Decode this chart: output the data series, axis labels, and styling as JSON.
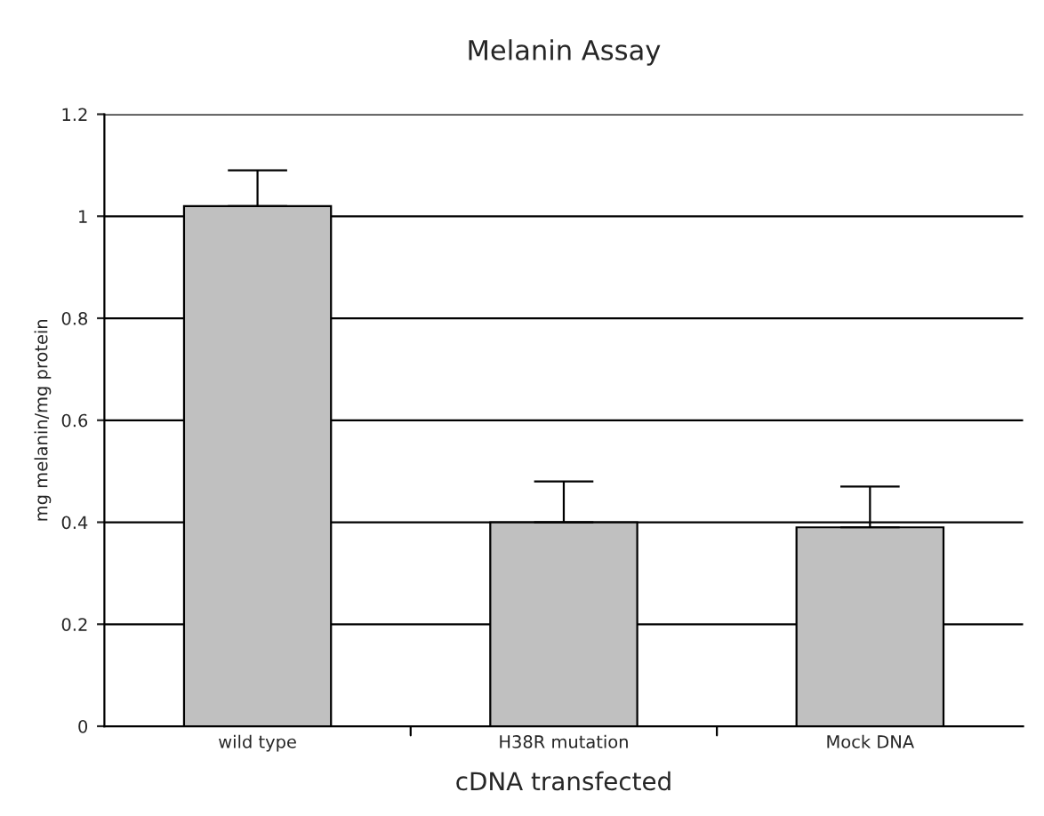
{
  "chart_data": {
    "type": "bar",
    "title": "Melanin Assay",
    "xlabel": "cDNA transfected",
    "ylabel": "mg melanin/mg protein",
    "categories": [
      "wild type",
      "H38R mutation",
      "Mock DNA"
    ],
    "values": [
      1.02,
      0.4,
      0.39
    ],
    "color": "#c0c0c0",
    "errors": [
      [
        1.02,
        1.09
      ],
      [
        0.4,
        0.48
      ],
      [
        0.39,
        0.47
      ]
    ],
    "ylim": [
      0,
      1.2
    ],
    "yticks": [
      0,
      0.2,
      0.4,
      0.6,
      0.8,
      1,
      1.2
    ],
    "grid": "y",
    "legend": false
  }
}
